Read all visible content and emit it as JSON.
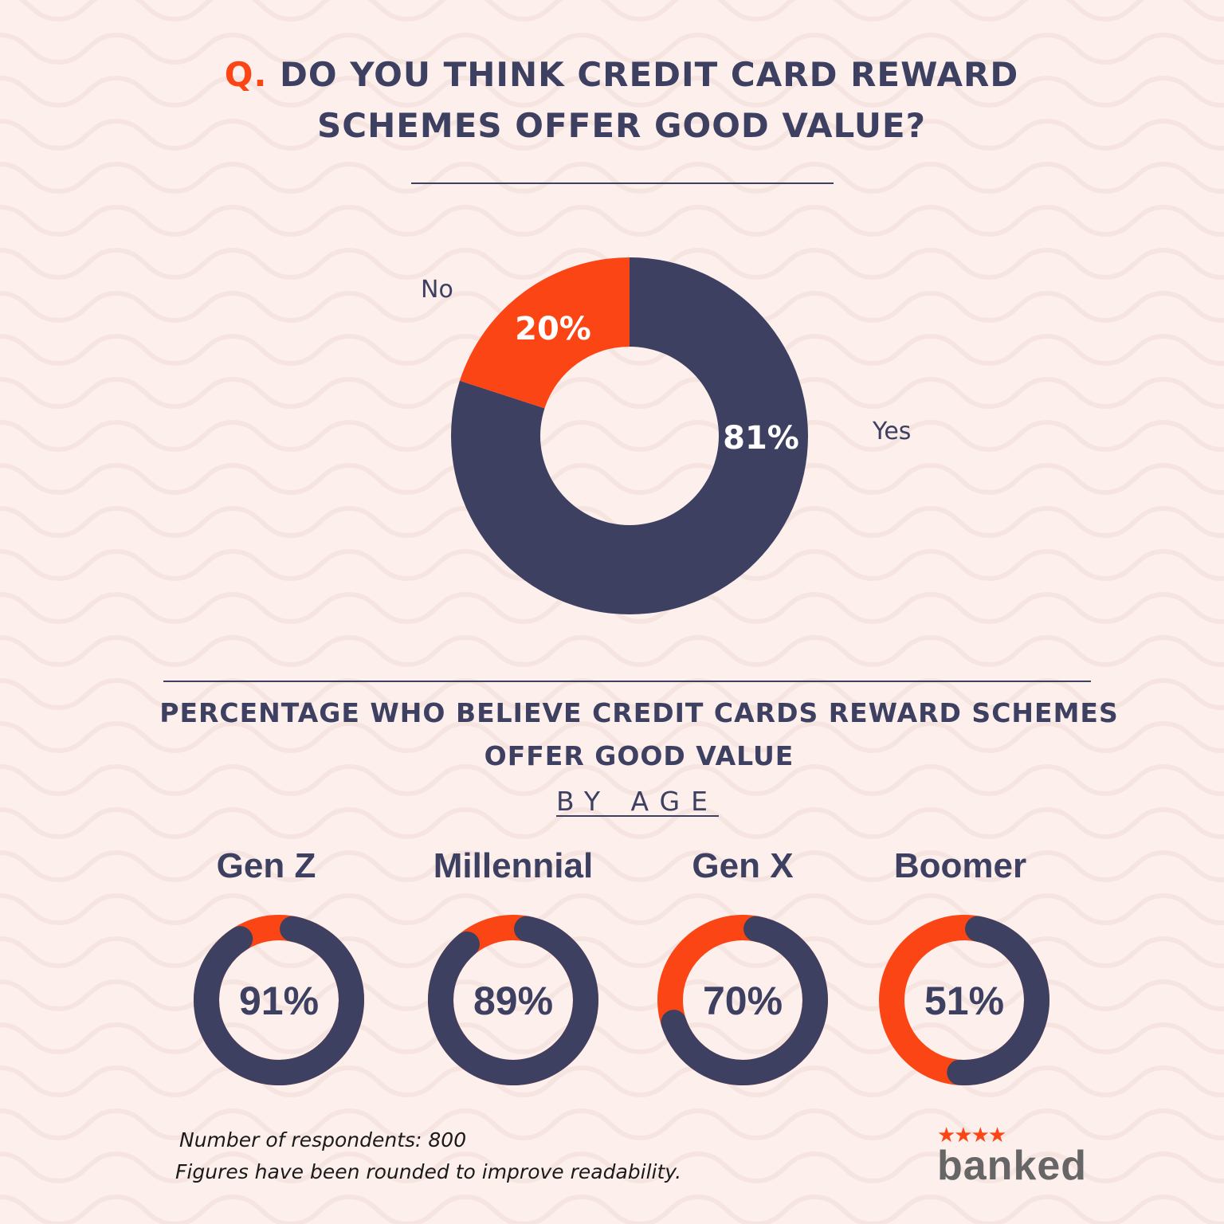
{
  "title": {
    "q_mark": "Q.",
    "line1": "DO YOU THINK CREDIT CARD REWARD",
    "line2": "SCHEMES OFFER GOOD VALUE?"
  },
  "colors": {
    "background": "#fcefec",
    "wave": "#f6e4e1",
    "dark": "#3d4060",
    "accent": "#fb4515"
  },
  "chart_data": [
    {
      "type": "pie",
      "variant": "donut",
      "slices": [
        {
          "label": "Yes",
          "value": 81,
          "display": "81%",
          "color": "#3d4060"
        },
        {
          "label": "No",
          "value": 20,
          "display": "20%",
          "color": "#fb4515"
        }
      ]
    },
    {
      "type": "pie",
      "variant": "donut-gauges",
      "title": "PERCENTAGE WHO BELIEVE CREDIT CARDS REWARD SCHEMES OFFER GOOD VALUE",
      "subtitle": "BY AGE",
      "categories": [
        "Gen Z",
        "Millennial",
        "Gen X",
        "Boomer"
      ],
      "values": [
        91,
        89,
        70,
        51
      ],
      "displays": [
        "91%",
        "89%",
        "70%",
        "51%"
      ]
    }
  ],
  "subtitle": {
    "line1": "PERCENTAGE WHO BELIEVE CREDIT CARDS REWARD SCHEMES",
    "line2": "OFFER GOOD VALUE",
    "by": "BY AGE"
  },
  "footer": {
    "respondents": "Number of respondents: 800",
    "rounding": "Figures have been rounded to improve readability."
  },
  "logo": {
    "text": "banked",
    "stars": "★★★★"
  }
}
